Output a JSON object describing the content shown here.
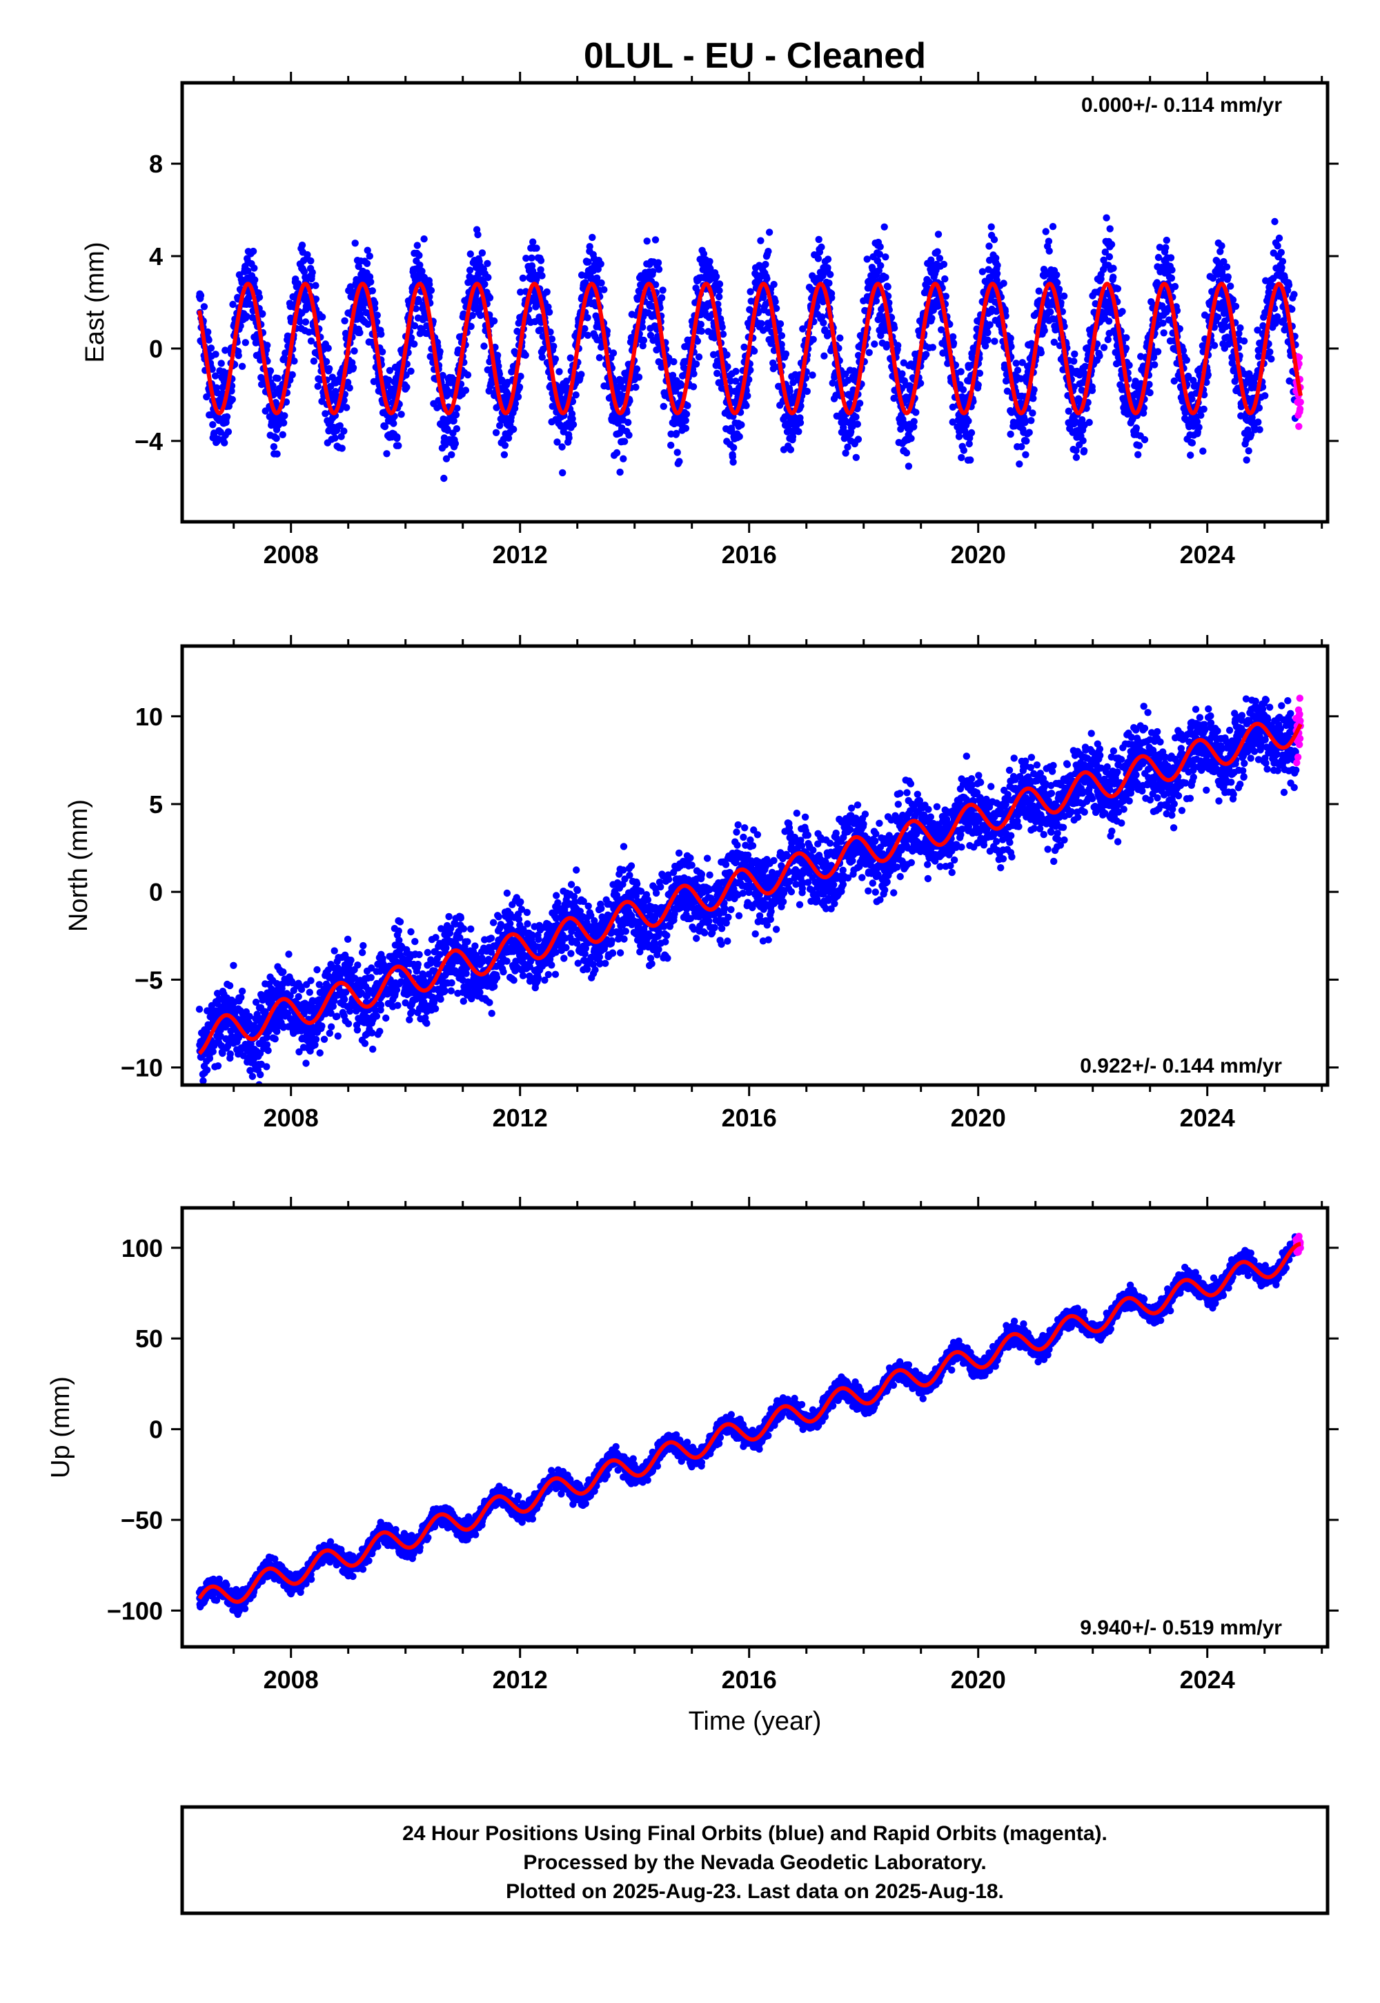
{
  "title": "0LUL  - EU - Cleaned",
  "footer": {
    "lines": [
      "24 Hour Positions Using Final Orbits (blue) and Rapid Orbits (magenta).",
      "Processed by the Nevada Geodetic Laboratory.",
      "Plotted on 2025-Aug-23. Last data on 2025-Aug-18."
    ]
  },
  "colors": {
    "final": "#0000ff",
    "rapid": "#ff00ff",
    "model": "#ff0000",
    "frame": "#000000"
  },
  "chart_data": [
    {
      "type": "scatter",
      "component": "East",
      "ylabel": "East (mm)",
      "xlabel": "",
      "xlim": [
        2006.1,
        2026.1
      ],
      "ylim": [
        -7.5,
        11.5
      ],
      "xticks": [
        2008,
        2012,
        2016,
        2020,
        2024
      ],
      "yticks": [
        -4,
        0,
        4,
        8
      ],
      "ytick_labels": [
        "−4",
        "0",
        "4",
        "8"
      ],
      "rate_label": "0.000+/- 0.114 mm/yr",
      "rate_position": "top-right",
      "data_start": 2006.4,
      "data_end": 2025.63,
      "rapid_start": 2025.55,
      "trend_mm_per_yr": 0.0,
      "trend_value_at_2016": 0.0,
      "annual_amplitude": 2.8,
      "annual_peak_phase": 0.25,
      "scatter_sd": 1.4,
      "series": [
        {
          "name": "Final Orbits (blue)",
          "color": "#0000ff"
        },
        {
          "name": "Rapid Orbits (magenta)",
          "color": "#ff00ff"
        },
        {
          "name": "model",
          "color": "#ff0000"
        }
      ]
    },
    {
      "type": "scatter",
      "component": "North",
      "ylabel": "North (mm)",
      "xlabel": "",
      "xlim": [
        2006.1,
        2026.1
      ],
      "ylim": [
        -11,
        14
      ],
      "xticks": [
        2008,
        2012,
        2016,
        2020,
        2024
      ],
      "yticks": [
        -10,
        -5,
        0,
        5,
        10
      ],
      "ytick_labels": [
        "−10",
        "−5",
        "0",
        "5",
        "10"
      ],
      "rate_label": "0.922+/- 0.144 mm/yr",
      "rate_position": "bottom-right",
      "data_start": 2006.4,
      "data_end": 2025.63,
      "rapid_start": 2025.55,
      "trend_mm_per_yr": 0.922,
      "trend_value_at_2016": 0.5,
      "annual_amplitude": 0.9,
      "annual_peak_phase": 0.85,
      "scatter_sd": 1.5,
      "series": [
        {
          "name": "Final Orbits (blue)",
          "color": "#0000ff"
        },
        {
          "name": "Rapid Orbits (magenta)",
          "color": "#ff00ff"
        },
        {
          "name": "model",
          "color": "#ff0000"
        }
      ]
    },
    {
      "type": "scatter",
      "component": "Up",
      "ylabel": "Up (mm)",
      "xlabel": "Time (year)",
      "xlim": [
        2006.1,
        2026.1
      ],
      "ylim": [
        -120,
        122
      ],
      "xticks": [
        2008,
        2012,
        2016,
        2020,
        2024
      ],
      "yticks": [
        -100,
        -50,
        0,
        50,
        100
      ],
      "ytick_labels": [
        "−100",
        "−50",
        "0",
        "50",
        "100"
      ],
      "rate_label": "9.940+/- 0.519 mm/yr",
      "rate_position": "bottom-right",
      "data_start": 2006.4,
      "data_end": 2025.63,
      "rapid_start": 2025.55,
      "trend_mm_per_yr": 9.94,
      "trend_value_at_2016": 0.0,
      "annual_amplitude": 6.5,
      "annual_peak_phase": 0.6,
      "scatter_sd": 3.8,
      "series": [
        {
          "name": "Final Orbits (blue)",
          "color": "#0000ff"
        },
        {
          "name": "Rapid Orbits (magenta)",
          "color": "#ff00ff"
        },
        {
          "name": "model",
          "color": "#ff0000"
        }
      ]
    }
  ]
}
